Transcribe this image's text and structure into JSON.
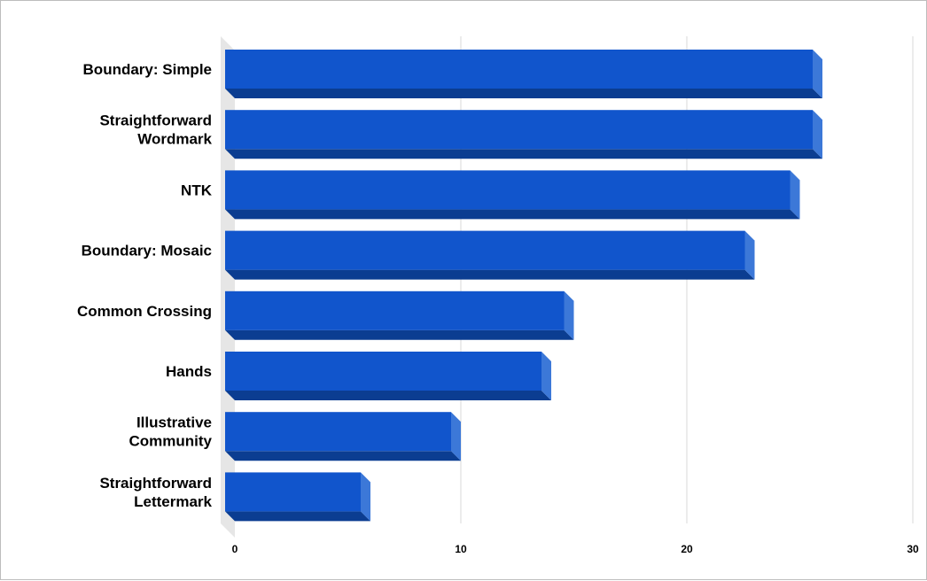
{
  "chart_data": {
    "type": "bar",
    "orientation": "horizontal",
    "style": "3d",
    "categories": [
      [
        "Boundary: Simple"
      ],
      [
        "Straightforward",
        "Wordmark"
      ],
      [
        "NTK"
      ],
      [
        "Boundary: Mosaic"
      ],
      [
        "Common Crossing"
      ],
      [
        "Hands"
      ],
      [
        "Illustrative",
        "Community"
      ],
      [
        "Straightforward",
        "Lettermark"
      ]
    ],
    "values": [
      26,
      26,
      25,
      23,
      15,
      14,
      10,
      6
    ],
    "xlim": [
      0,
      30
    ],
    "xticks": [
      "0",
      "10",
      "20",
      "30"
    ],
    "title": "",
    "xlabel": "",
    "ylabel": "",
    "grid": "vertical",
    "legend": "none",
    "colors": {
      "bar_face": "#1155cc",
      "bar_side": "#3c78d8",
      "bar_bottom": "#0b3d91",
      "grid": "#d9d9d9",
      "axis_wall": "#e6e6e6"
    }
  }
}
